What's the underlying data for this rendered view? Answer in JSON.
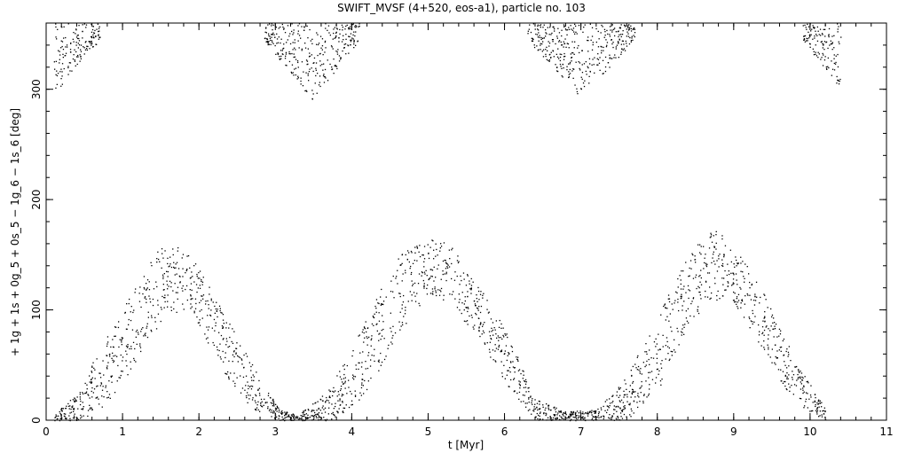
{
  "chart_data": {
    "type": "scatter",
    "title": "SWIFT_MVSF (4+520, eos-a1), particle no. 103",
    "xlabel": "t [Myr]",
    "ylabel": "+ 1g + 1s + 0g_5 + 0s_5 − 1g_6 − 1s_6 [deg]",
    "xlim": [
      0,
      11
    ],
    "ylim": [
      0,
      360
    ],
    "xticks": [
      0,
      1,
      2,
      3,
      4,
      5,
      6,
      7,
      8,
      9,
      10,
      11
    ],
    "yticks": [
      0,
      100,
      200,
      300
    ],
    "grid": false,
    "marker_color": "#000000",
    "series": [
      {
        "envelope_knots": [
          [
            0.1,
            0,
            5
          ],
          [
            0.45,
            0,
            30
          ],
          [
            0.8,
            15,
            80
          ],
          [
            1.2,
            55,
            125
          ],
          [
            1.55,
            95,
            165
          ],
          [
            1.9,
            100,
            150
          ],
          [
            2.3,
            45,
            100
          ],
          [
            2.7,
            10,
            50
          ],
          [
            3.05,
            0,
            10
          ],
          [
            3.3,
            0,
            5
          ],
          [
            3.7,
            0,
            30
          ],
          [
            4.1,
            15,
            80
          ],
          [
            4.6,
            75,
            150
          ],
          [
            5.0,
            115,
            165
          ],
          [
            5.3,
            105,
            160
          ],
          [
            5.7,
            70,
            120
          ],
          [
            6.1,
            25,
            70
          ],
          [
            6.4,
            0,
            20
          ],
          [
            6.8,
            0,
            8
          ],
          [
            7.2,
            0,
            10
          ],
          [
            7.6,
            0,
            40
          ],
          [
            8.0,
            25,
            95
          ],
          [
            8.4,
            85,
            150
          ],
          [
            8.7,
            110,
            175
          ],
          [
            9.0,
            105,
            160
          ],
          [
            9.4,
            60,
            115
          ],
          [
            9.8,
            15,
            55
          ],
          [
            10.2,
            0,
            10
          ]
        ],
        "upper_branches": [
          {
            "t_range": [
              0.1,
              0.7
            ],
            "bottom": [
              295,
              345
            ],
            "top": 360
          },
          {
            "t_range": [
              2.85,
              4.1
            ],
            "bottom": [
              345,
              290,
              345
            ],
            "top": 360
          },
          {
            "t_range": [
              6.3,
              7.7
            ],
            "bottom": [
              345,
              292,
              345
            ],
            "top": 360
          },
          {
            "t_range": [
              9.9,
              10.4
            ],
            "bottom": [
              345,
              300
            ],
            "top": 360
          }
        ]
      }
    ]
  }
}
